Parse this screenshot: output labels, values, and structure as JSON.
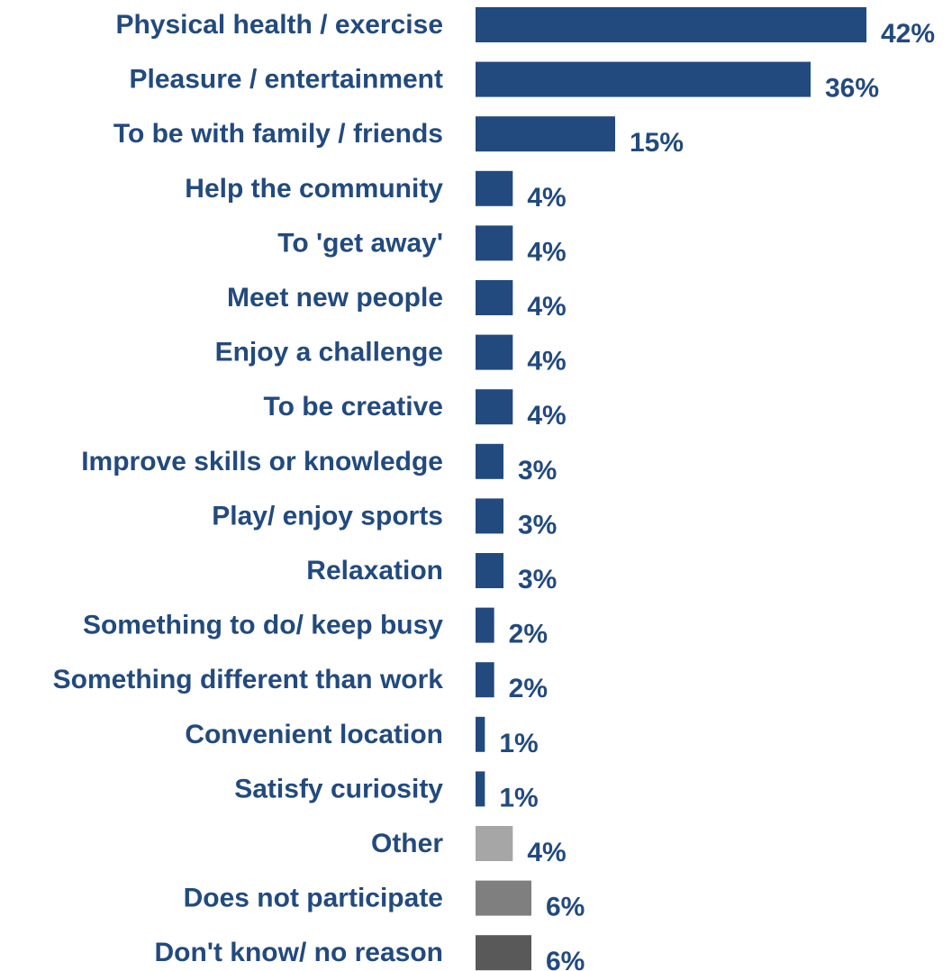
{
  "chart_data": {
    "type": "bar",
    "orientation": "horizontal",
    "title": "",
    "xlabel": "",
    "ylabel": "",
    "xlim": [
      0,
      42
    ],
    "grid": false,
    "legend": "none",
    "categories": [
      "Physical health / exercise",
      "Pleasure / entertainment",
      "To be with family / friends",
      "Help the community",
      "To 'get away'",
      "Meet new people",
      "Enjoy a challenge",
      "To be creative",
      "Improve skills or knowledge",
      "Play/ enjoy sports",
      "Relaxation",
      "Something to do/ keep busy",
      "Something different than work",
      "Convenient location",
      "Satisfy curiosity",
      "Other",
      "Does not participate",
      "Don't know/ no reason"
    ],
    "values": [
      42,
      36,
      15,
      4,
      4,
      4,
      4,
      4,
      3,
      3,
      3,
      2,
      2,
      1,
      1,
      4,
      6,
      6
    ],
    "data_labels": [
      "42%",
      "36%",
      "15%",
      "4%",
      "4%",
      "4%",
      "4%",
      "4%",
      "3%",
      "3%",
      "3%",
      "2%",
      "2%",
      "1%",
      "1%",
      "4%",
      "6%",
      "6%"
    ],
    "bar_colors": [
      "#224a7e",
      "#224a7e",
      "#224a7e",
      "#224a7e",
      "#224a7e",
      "#224a7e",
      "#224a7e",
      "#224a7e",
      "#224a7e",
      "#224a7e",
      "#224a7e",
      "#224a7e",
      "#224a7e",
      "#224a7e",
      "#224a7e",
      "#a6a6a6",
      "#7f7f7f",
      "#595959"
    ],
    "label_color": "#224a7e"
  }
}
